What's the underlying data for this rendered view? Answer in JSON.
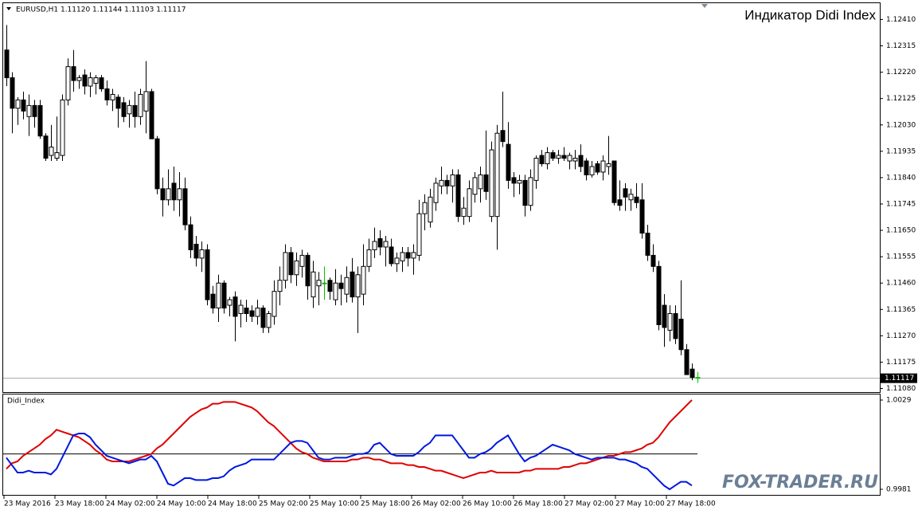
{
  "chart_data": [
    {
      "type": "candlestick",
      "header": "EURUSD,H1  1.11120 1.11144 1.11103 1.11117",
      "title": "Индикатор Didi Index",
      "watermark": "FOX-TRADER.RU",
      "bull_color": "#ffffff",
      "bear_color": "#000000",
      "doji_color": "#00c000",
      "title_color": "#ff0000",
      "ylim": [
        1.1107,
        1.1244
      ],
      "yticks": [
        {
          "value": 1.1241,
          "label": "1.12410"
        },
        1.12315,
        {
          "value": 1.1222,
          "label": "1.12220"
        },
        1.12125,
        {
          "value": 1.1203,
          "label": "1.12030"
        },
        1.11935,
        {
          "value": 1.1184,
          "label": "1.11840"
        },
        1.11745,
        {
          "value": 1.1165,
          "label": "1.11650"
        },
        1.11555,
        {
          "value": 1.1146,
          "label": "1.11460"
        },
        1.11365,
        {
          "value": 1.1127,
          "label": "1.11270"
        },
        1.11175,
        {
          "value": 1.1108,
          "label": "1.11080"
        }
      ],
      "current_price": 1.11117,
      "candles": [
        [
          1.123,
          1.1239,
          1.1217,
          1.122
        ],
        [
          1.122,
          1.1222,
          1.12,
          1.1209
        ],
        [
          1.1209,
          1.1213,
          1.1203,
          1.1212
        ],
        [
          1.1212,
          1.1215,
          1.1205,
          1.1208
        ],
        [
          1.1206,
          1.1214,
          1.1199,
          1.121
        ],
        [
          1.121,
          1.1212,
          1.1202,
          1.1206
        ],
        [
          1.121,
          1.1212,
          1.1198,
          1.1199
        ],
        [
          1.1199,
          1.12,
          1.119,
          1.1191
        ],
        [
          1.1192,
          1.1203,
          1.119,
          1.1195
        ],
        [
          1.1191,
          1.1206,
          1.119,
          1.1193
        ],
        [
          1.1192,
          1.1214,
          1.119,
          1.1212
        ],
        [
          1.1212,
          1.1227,
          1.121,
          1.1224
        ],
        [
          1.1224,
          1.123,
          1.1215,
          1.1219
        ],
        [
          1.1219,
          1.1221,
          1.1216,
          1.122
        ],
        [
          1.1221,
          1.1223,
          1.1214,
          1.1217
        ],
        [
          1.1217,
          1.1222,
          1.1213,
          1.122
        ],
        [
          1.1218,
          1.1221,
          1.1214,
          1.122
        ],
        [
          1.122,
          1.1221,
          1.1215,
          1.1216
        ],
        [
          1.1216,
          1.1219,
          1.121,
          1.1212
        ],
        [
          1.1212,
          1.1216,
          1.1208,
          1.1214
        ],
        [
          1.1213,
          1.1214,
          1.1202,
          1.1209
        ],
        [
          1.1211,
          1.1213,
          1.1204,
          1.1206
        ],
        [
          1.1207,
          1.1212,
          1.1202,
          1.121
        ],
        [
          1.121,
          1.1215,
          1.1202,
          1.1206
        ],
        [
          1.1206,
          1.1216,
          1.1203,
          1.1214
        ],
        [
          1.1208,
          1.1226,
          1.12,
          1.1215
        ],
        [
          1.1215,
          1.1216,
          1.1198,
          1.1198
        ],
        [
          1.1198,
          1.1199,
          1.1178,
          1.118
        ],
        [
          1.118,
          1.1184,
          1.117,
          1.1176
        ],
        [
          1.1176,
          1.1187,
          1.1174,
          1.118
        ],
        [
          1.1182,
          1.1188,
          1.1172,
          1.1176
        ],
        [
          1.1176,
          1.1186,
          1.117,
          1.118
        ],
        [
          1.118,
          1.1184,
          1.1165,
          1.1167
        ],
        [
          1.1167,
          1.117,
          1.1155,
          1.1158
        ],
        [
          1.116,
          1.1163,
          1.1152,
          1.1155
        ],
        [
          1.1155,
          1.1161,
          1.115,
          1.1158
        ],
        [
          1.1158,
          1.116,
          1.1138,
          1.114
        ],
        [
          1.1142,
          1.1145,
          1.1135,
          1.1137
        ],
        [
          1.1137,
          1.1149,
          1.1132,
          1.1146
        ],
        [
          1.1146,
          1.1147,
          1.1135,
          1.1137
        ],
        [
          1.1138,
          1.1141,
          1.1134,
          1.114
        ],
        [
          1.1141,
          1.1143,
          1.1125,
          1.1134
        ],
        [
          1.1135,
          1.114,
          1.113,
          1.1138
        ],
        [
          1.1137,
          1.114,
          1.1132,
          1.1135
        ],
        [
          1.1136,
          1.1138,
          1.1132,
          1.1134
        ],
        [
          1.1134,
          1.114,
          1.1131,
          1.1137
        ],
        [
          1.1137,
          1.1138,
          1.1128,
          1.113
        ],
        [
          1.113,
          1.1136,
          1.1128,
          1.1135
        ],
        [
          1.1134,
          1.1147,
          1.1131,
          1.1143
        ],
        [
          1.1143,
          1.1152,
          1.1138,
          1.1147
        ],
        [
          1.1147,
          1.116,
          1.1144,
          1.1157
        ],
        [
          1.1157,
          1.1159,
          1.1146,
          1.1149
        ],
        [
          1.1149,
          1.1157,
          1.1145,
          1.1154
        ],
        [
          1.1152,
          1.1158,
          1.1148,
          1.1156
        ],
        [
          1.1156,
          1.1157,
          1.114,
          1.1145
        ],
        [
          1.1141,
          1.1154,
          1.1137,
          1.115
        ],
        [
          1.1145,
          1.115,
          1.1138,
          1.1147
        ],
        [
          1.1146,
          1.1152,
          1.114,
          1.1146
        ],
        [
          1.1147,
          1.1148,
          1.114,
          1.1143
        ],
        [
          1.114,
          1.1151,
          1.1138,
          1.1146
        ],
        [
          1.1146,
          1.1149,
          1.1138,
          1.1144
        ],
        [
          1.1142,
          1.1152,
          1.1139,
          1.1148
        ],
        [
          1.115,
          1.1155,
          1.1139,
          1.1141
        ],
        [
          1.1141,
          1.1152,
          1.1128,
          1.1149
        ],
        [
          1.1142,
          1.116,
          1.1138,
          1.1152
        ],
        [
          1.1152,
          1.1162,
          1.115,
          1.1158
        ],
        [
          1.1158,
          1.1166,
          1.1155,
          1.1161
        ],
        [
          1.1162,
          1.1165,
          1.1156,
          1.1159
        ],
        [
          1.1159,
          1.1163,
          1.1152,
          1.1161
        ],
        [
          1.1159,
          1.1162,
          1.1152,
          1.1153
        ],
        [
          1.1153,
          1.1157,
          1.115,
          1.1155
        ],
        [
          1.1154,
          1.1159,
          1.115,
          1.1157
        ],
        [
          1.1157,
          1.1159,
          1.1152,
          1.1155
        ],
        [
          1.1155,
          1.116,
          1.1149,
          1.1157
        ],
        [
          1.1156,
          1.1176,
          1.1154,
          1.1171
        ],
        [
          1.1171,
          1.1178,
          1.1165,
          1.1175
        ],
        [
          1.1168,
          1.118,
          1.1166,
          1.1177
        ],
        [
          1.1175,
          1.1184,
          1.1172,
          1.1182
        ],
        [
          1.1181,
          1.1188,
          1.1178,
          1.1183
        ],
        [
          1.1183,
          1.1185,
          1.1178,
          1.1181
        ],
        [
          1.1181,
          1.1187,
          1.1175,
          1.1185
        ],
        [
          1.1185,
          1.1187,
          1.1168,
          1.117
        ],
        [
          1.117,
          1.1177,
          1.1167,
          1.1173
        ],
        [
          1.117,
          1.1183,
          1.1168,
          1.118
        ],
        [
          1.1178,
          1.1186,
          1.1175,
          1.1184
        ],
        [
          1.118,
          1.1188,
          1.1175,
          1.1185
        ],
        [
          1.1185,
          1.1201,
          1.1176,
          1.1179
        ],
        [
          1.117,
          1.1197,
          1.1168,
          1.1194
        ],
        [
          1.117,
          1.1203,
          1.1158,
          1.12
        ],
        [
          1.1201,
          1.1215,
          1.1195,
          1.1197
        ],
        [
          1.1196,
          1.1204,
          1.118,
          1.1183
        ],
        [
          1.1184,
          1.1186,
          1.1177,
          1.1182
        ],
        [
          1.1182,
          1.1185,
          1.1178,
          1.1183
        ],
        [
          1.1183,
          1.1185,
          1.117,
          1.1174
        ],
        [
          1.1174,
          1.1187,
          1.1172,
          1.1184
        ],
        [
          1.1183,
          1.1192,
          1.118,
          1.1191
        ],
        [
          1.1192,
          1.1194,
          1.1188,
          1.1189
        ],
        [
          1.1189,
          1.1195,
          1.1187,
          1.1193
        ],
        [
          1.1193,
          1.1194,
          1.119,
          1.1191
        ],
        [
          1.1191,
          1.1194,
          1.1189,
          1.1192
        ],
        [
          1.1192,
          1.1195,
          1.119,
          1.1191
        ],
        [
          1.119,
          1.1193,
          1.1187,
          1.1192
        ],
        [
          1.119,
          1.1194,
          1.1187,
          1.1191
        ],
        [
          1.1192,
          1.1196,
          1.1186,
          1.1188
        ],
        [
          1.119,
          1.1191,
          1.1183,
          1.1185
        ],
        [
          1.1185,
          1.119,
          1.1184,
          1.1188
        ],
        [
          1.1189,
          1.119,
          1.1185,
          1.1186
        ],
        [
          1.1186,
          1.1192,
          1.1183,
          1.119
        ],
        [
          1.1188,
          1.1199,
          1.1185,
          1.1189
        ],
        [
          1.119,
          1.119,
          1.1174,
          1.1175
        ],
        [
          1.1176,
          1.1183,
          1.1172,
          1.1174
        ],
        [
          1.118,
          1.1182,
          1.1172,
          1.1177
        ],
        [
          1.1176,
          1.118,
          1.1172,
          1.1178
        ],
        [
          1.1177,
          1.1182,
          1.1173,
          1.1175
        ],
        [
          1.1176,
          1.1182,
          1.1162,
          1.1164
        ],
        [
          1.1164,
          1.1167,
          1.1154,
          1.1156
        ],
        [
          1.1156,
          1.116,
          1.115,
          1.1152
        ],
        [
          1.1152,
          1.1154,
          1.1129,
          1.1131
        ],
        [
          1.1138,
          1.1142,
          1.1123,
          1.113
        ],
        [
          1.1129,
          1.1138,
          1.1125,
          1.1135
        ],
        [
          1.1135,
          1.1138,
          1.1124,
          1.1126
        ],
        [
          1.1133,
          1.1147,
          1.112,
          1.1122
        ],
        [
          1.1122,
          1.1124,
          1.1113,
          1.1113
        ],
        [
          1.1115,
          1.1117,
          1.1111,
          1.1112
        ],
        [
          1.1112,
          1.1114,
          1.111,
          1.1112
        ]
      ]
    },
    {
      "type": "line",
      "title": "Didi_Index",
      "ylim": [
        0.9978,
        1.0032
      ],
      "yticks": [
        1.0029,
        0.9981
      ],
      "levels": [
        1
      ],
      "xlabels": [
        "23 May 2016",
        "23 May 18:00",
        "24 May 02:00",
        "24 May 10:00",
        "24 May 18:00",
        "25 May 02:00",
        "25 May 10:00",
        "25 May 18:00",
        "26 May 02:00",
        "26 May 10:00",
        "26 May 18:00",
        "27 May 02:00",
        "27 May 10:00",
        "27 May 18:00"
      ],
      "series": [
        {
          "color": "#e00000",
          "values": [
            0.9992,
            0.9995,
            0.9996,
            0.9999,
            1.0001,
            1.0003,
            1.0005,
            1.0008,
            1.001,
            1.0013,
            1.0012,
            1.0011,
            1.001,
            1.0009,
            1.0007,
            1.0005,
            1.0002,
            1.0,
            0.9997,
            0.9996,
            0.9996,
            0.9996,
            0.9996,
            0.9997,
            0.9998,
            0.9999,
            1.0,
            1.0003,
            1.0005,
            1.0008,
            1.0011,
            1.0014,
            1.0017,
            1.002,
            1.0022,
            1.0024,
            1.0025,
            1.0027,
            1.0027,
            1.0028,
            1.0028,
            1.0028,
            1.0027,
            1.0026,
            1.0025,
            1.0023,
            1.002,
            1.0017,
            1.0015,
            1.0012,
            1.0009,
            1.0006,
            1.0003,
            1.0001,
            1.0,
            0.9998,
            0.9997,
            0.9996,
            0.9996,
            0.9996,
            0.9996,
            0.9996,
            0.9997,
            0.9997,
            0.9998,
            0.9998,
            0.9997,
            0.9997,
            0.9996,
            0.9995,
            0.9995,
            0.9995,
            0.9994,
            0.9994,
            0.9993,
            0.9993,
            0.9992,
            0.9991,
            0.9991,
            0.999,
            0.9989,
            0.9988,
            0.9987,
            0.9988,
            0.9989,
            0.999,
            0.999,
            0.9991,
            0.999,
            0.999,
            0.999,
            0.999,
            0.999,
            0.9991,
            0.9991,
            0.9992,
            0.9992,
            0.9992,
            0.9992,
            0.9992,
            0.9993,
            0.9993,
            0.9994,
            0.9995,
            0.9995,
            0.9996,
            0.9997,
            0.9998,
            0.9999,
            0.9999,
            1.0,
            1.0001,
            1.0001,
            1.0002,
            1.0003,
            1.0005,
            1.0006,
            1.0009,
            1.0013,
            1.0017,
            1.002,
            1.0023,
            1.0026,
            1.0029,
            null
          ]
        },
        {
          "color": "#0018e0",
          "values": [
            0.9998,
            0.9994,
            0.999,
            0.999,
            0.9991,
            0.999,
            0.999,
            0.999,
            0.9989,
            0.9992,
            0.9998,
            1.0004,
            1.001,
            1.0011,
            1.0011,
            1.0009,
            1.0005,
            1.0002,
            0.9999,
            0.9998,
            0.9997,
            0.9996,
            0.9995,
            0.9996,
            0.9997,
            0.9997,
            0.9999,
            0.9996,
            0.999,
            0.9984,
            0.9983,
            0.9985,
            0.9987,
            0.9987,
            0.9986,
            0.9986,
            0.9986,
            0.9987,
            0.9987,
            0.9988,
            0.9991,
            0.9993,
            0.9994,
            0.9995,
            0.9997,
            0.9997,
            0.9997,
            0.9997,
            0.9997,
            1.0,
            1.0003,
            1.0006,
            1.0007,
            1.0007,
            1.0006,
            1.0002,
            0.9998,
            0.9997,
            0.9997,
            0.9998,
            0.9998,
            0.9998,
            0.9999,
            1.0,
            1.0,
            1.0001,
            1.0005,
            1.0006,
            1.0003,
            1.0,
            0.9999,
            0.9999,
            0.9999,
            0.9999,
            1.0001,
            1.0004,
            1.0006,
            1.001,
            1.001,
            1.001,
            1.001,
            1.0006,
            1.0002,
            0.9998,
            0.9998,
            1.0,
            1.0001,
            1.0003,
            1.0006,
            1.0008,
            1.001,
            1.0005,
            1.0,
            0.9996,
            0.9998,
            0.9999,
            1.0001,
            1.0003,
            1.0005,
            1.0004,
            1.0003,
            1.0002,
            1.0,
            0.9999,
            0.9998,
            0.9997,
            0.9998,
            0.9998,
            0.9998,
            0.9998,
            0.9997,
            0.9997,
            0.9996,
            0.9995,
            0.9993,
            0.9992,
            0.9989,
            0.9986,
            0.9983,
            0.9981,
            0.9983,
            0.9985,
            0.9985,
            0.9983,
            null
          ]
        }
      ]
    }
  ]
}
